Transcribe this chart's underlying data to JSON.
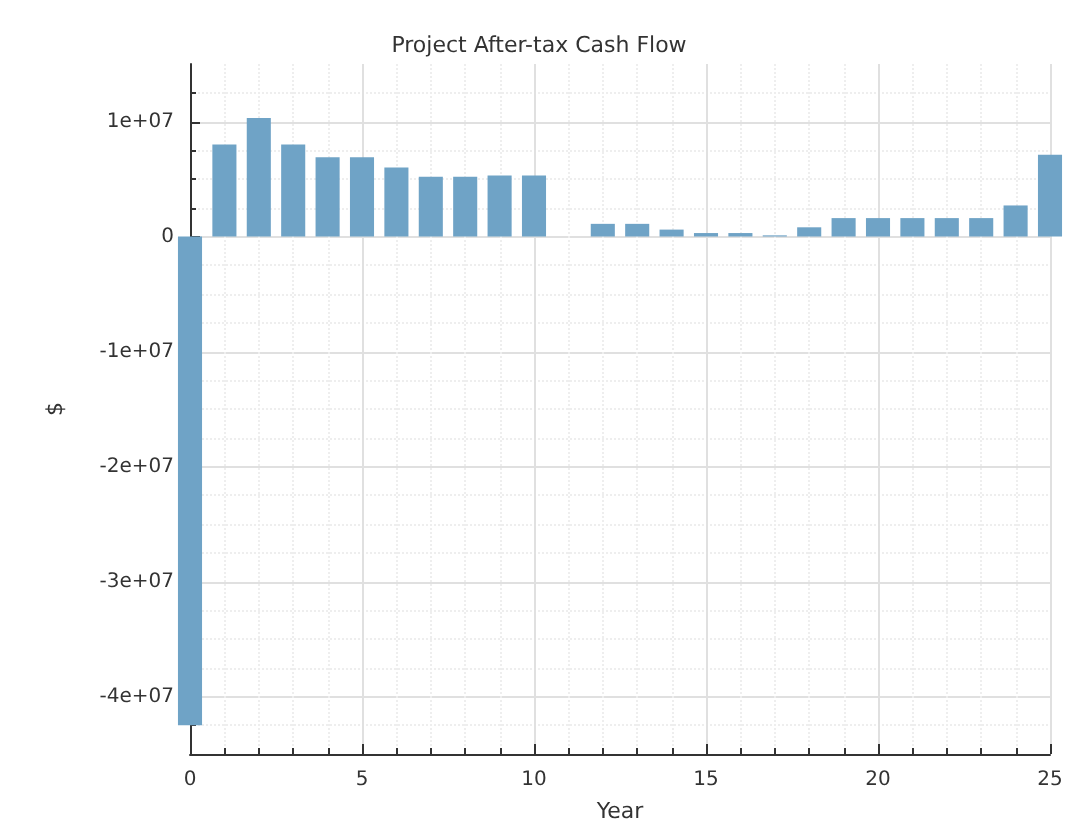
{
  "chart_data": {
    "type": "bar",
    "title": "Project After-tax Cash Flow",
    "xlabel": "Year",
    "ylabel": "$",
    "x": [
      0,
      1,
      2,
      3,
      4,
      5,
      6,
      7,
      8,
      9,
      10,
      11,
      12,
      13,
      14,
      15,
      16,
      17,
      18,
      19,
      20,
      21,
      22,
      23,
      24,
      25
    ],
    "values": [
      -42500000,
      8000000,
      10300000,
      8000000,
      6900000,
      6900000,
      6000000,
      5200000,
      5200000,
      5300000,
      5300000,
      0,
      1100000,
      1100000,
      600000,
      300000,
      300000,
      100000,
      800000,
      1600000,
      1600000,
      1600000,
      1600000,
      1600000,
      2700000,
      7100000
    ],
    "color": "#6fa3c6",
    "xlim": [
      0,
      25
    ],
    "xticks": [
      0,
      5,
      10,
      15,
      20,
      25
    ],
    "ylim": [
      -45000000,
      15000000
    ],
    "yticks": [
      {
        "value": -40000000,
        "label": "-4e+07"
      },
      {
        "value": -30000000,
        "label": "-3e+07"
      },
      {
        "value": -20000000,
        "label": "-2e+07"
      },
      {
        "value": -10000000,
        "label": "-1e+07"
      },
      {
        "value": 0,
        "label": "0"
      },
      {
        "value": 10000000,
        "label": "1e+07"
      }
    ],
    "grid": true
  }
}
